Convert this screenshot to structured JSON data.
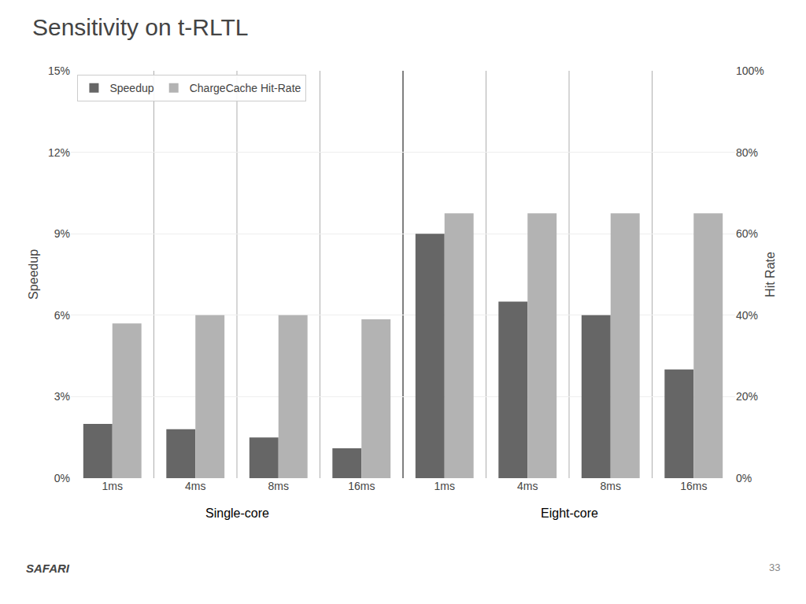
{
  "chart_data": {
    "type": "bar",
    "title": "Sensitivity on t-RLTL",
    "categories": [
      "1ms",
      "4ms",
      "8ms",
      "16ms",
      "1ms",
      "4ms",
      "8ms",
      "16ms"
    ],
    "series": [
      {
        "name": "Speedup",
        "color": "#666666",
        "values": [
          2.0,
          1.8,
          1.5,
          1.1,
          9.0,
          6.5,
          6.0,
          4.0
        ]
      },
      {
        "name": "ChargeCache Hit-Rate",
        "color": "#b3b3b3",
        "axis": "y2",
        "values": [
          38,
          40,
          40,
          39,
          65,
          65,
          65,
          65
        ]
      }
    ],
    "y_label": "Speedup",
    "y2_label": "Hit Rate",
    "ylim": [
      0,
      15
    ],
    "yticks": [
      {
        "value": 0,
        "label": "0%"
      },
      {
        "value": 3,
        "label": "3%"
      },
      {
        "value": 6,
        "label": "6%"
      },
      {
        "value": 9,
        "label": "9%"
      },
      {
        "value": 12,
        "label": "12%"
      },
      {
        "value": 15,
        "label": "15%"
      }
    ],
    "y2lim": [
      0,
      100
    ],
    "y2ticks": [
      {
        "value": 0,
        "label": "0%"
      },
      {
        "value": 20,
        "label": "20%"
      },
      {
        "value": 40,
        "label": "40%"
      },
      {
        "value": 60,
        "label": "60%"
      },
      {
        "value": 80,
        "label": "80%"
      },
      {
        "value": 100,
        "label": "100%"
      }
    ],
    "annotations": [
      "Single-core",
      "Eight-core",
      "SAFARI",
      "33"
    ],
    "grid": true,
    "legend": "upper left"
  }
}
